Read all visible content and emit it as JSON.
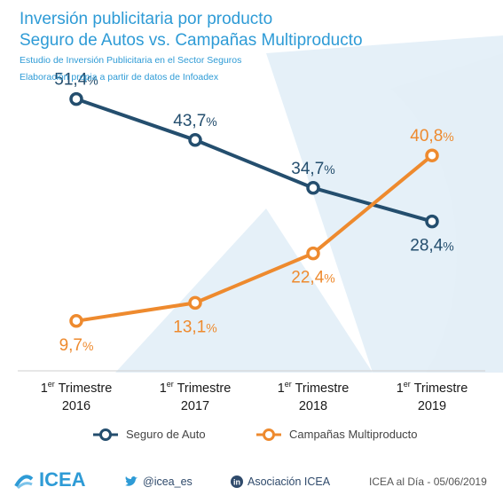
{
  "header": {
    "title_line1": "Inversión publicitaria por producto",
    "title_line2": "Seguro de Autos vs. Campañas Multiproducto",
    "subtitle1": "Estudio de Inversión Publicitaria en el Sector Seguros",
    "subtitle2": "Elaboración propia a partir de datos de Infoadex"
  },
  "chart_data": {
    "type": "line",
    "categories": [
      {
        "prefix": "1",
        "sup": "er",
        "label": "Trimestre",
        "year": "2016"
      },
      {
        "prefix": "1",
        "sup": "er",
        "label": "Trimestre",
        "year": "2017"
      },
      {
        "prefix": "1",
        "sup": "er",
        "label": "Trimestre",
        "year": "2018"
      },
      {
        "prefix": "1",
        "sup": "er",
        "label": "Trimestre",
        "year": "2019"
      }
    ],
    "series": [
      {
        "name": "Seguro de Auto",
        "color": "#244e6e",
        "values": [
          51.4,
          43.7,
          34.7,
          28.4
        ],
        "labels": [
          "51,4",
          "43,7",
          "34,7",
          "28,4"
        ]
      },
      {
        "name": "Campañas Multiproducto",
        "color": "#ee8a2e",
        "values": [
          9.7,
          13.1,
          22.4,
          40.8
        ],
        "labels": [
          "9,7",
          "13,1",
          "22,4",
          "40,8"
        ]
      }
    ],
    "unit": "%",
    "ylim": [
      0,
      60
    ],
    "grid": false,
    "legend_position": "bottom"
  },
  "footer": {
    "logo": "ICEA",
    "twitter": "@icea_es",
    "linkedin": "Asociación ICEA",
    "credit": "ICEA al Día - 05/06/2019"
  }
}
